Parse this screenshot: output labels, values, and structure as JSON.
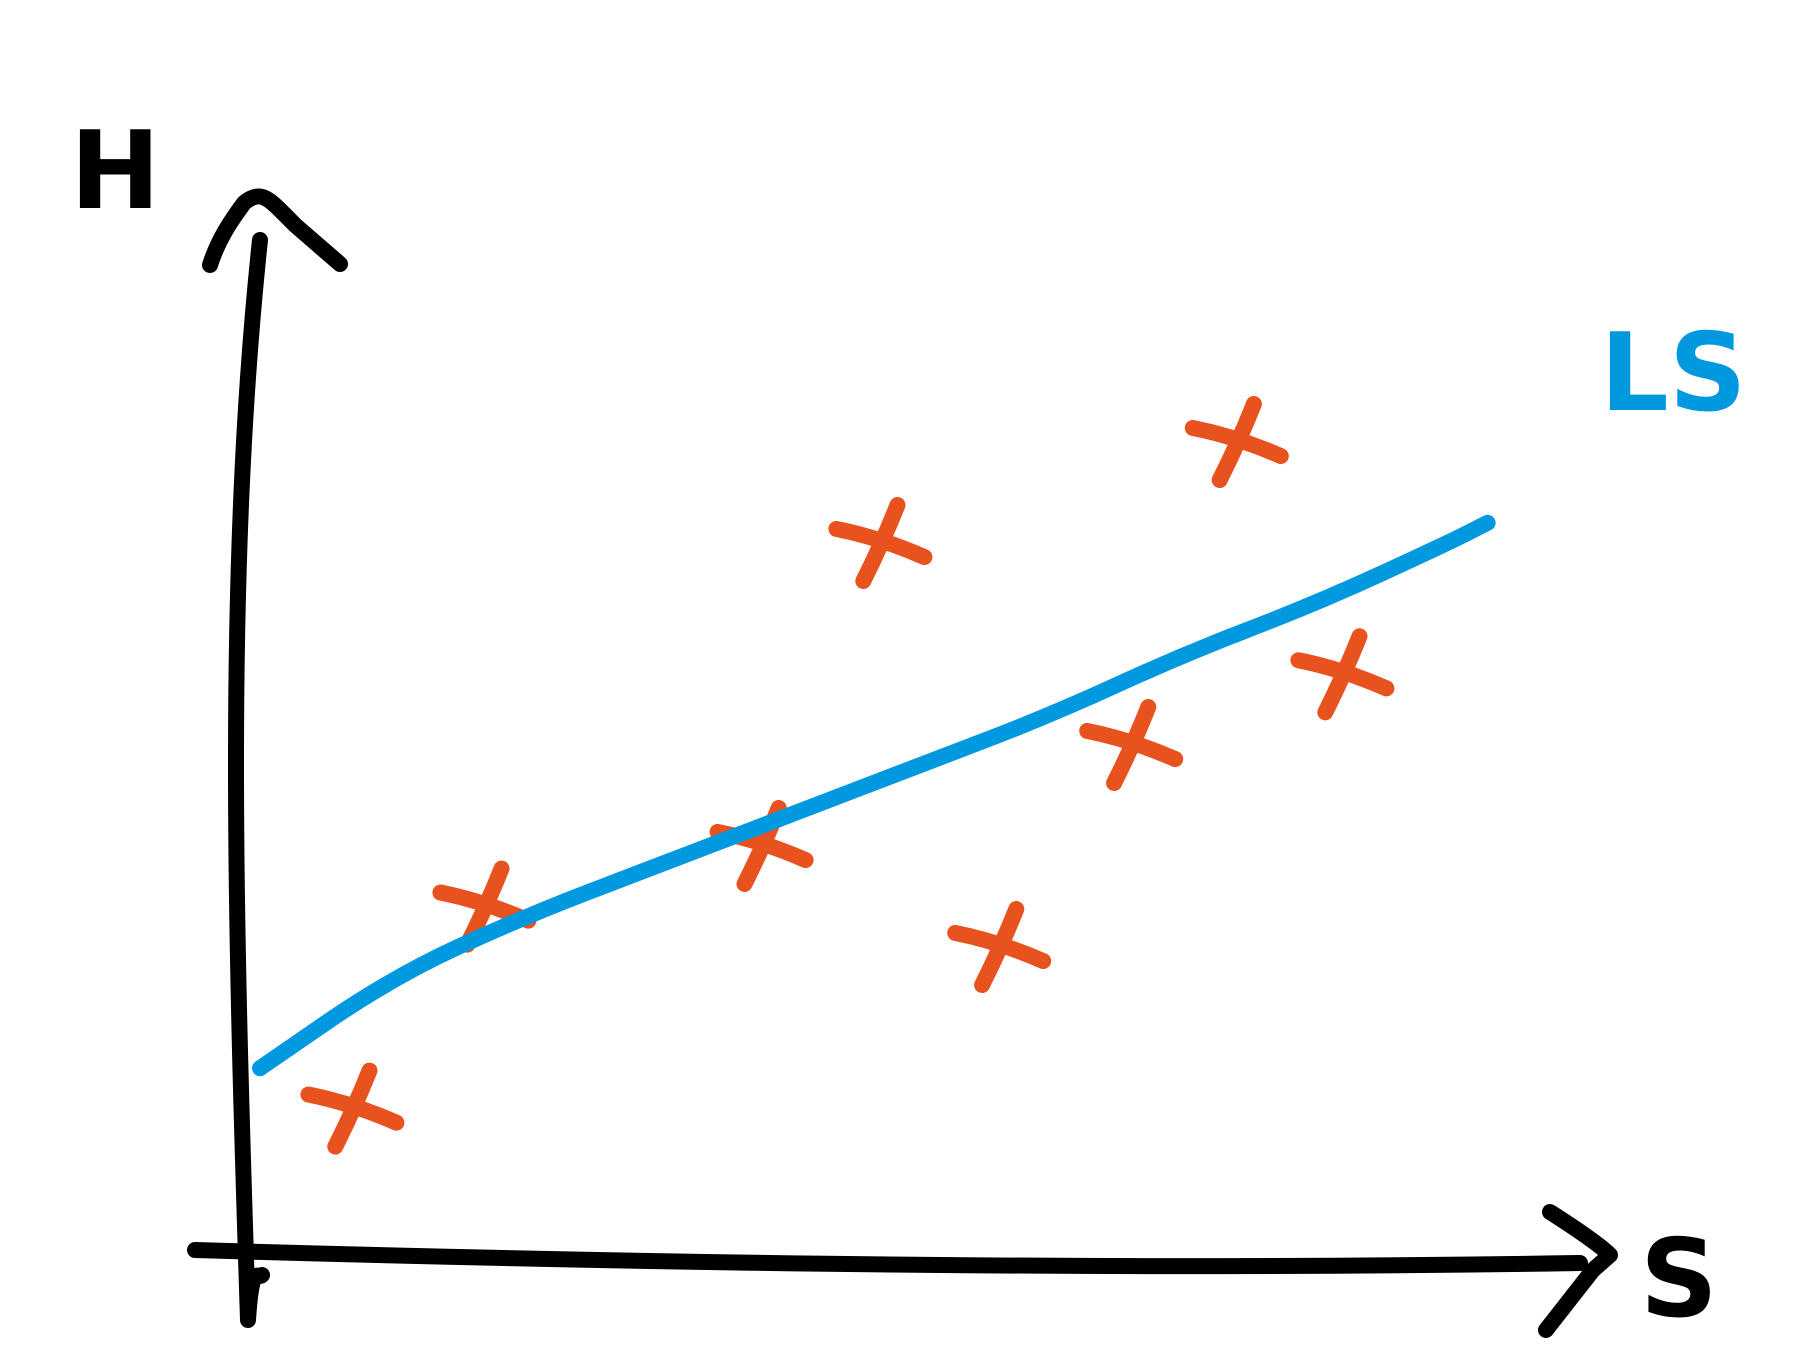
{
  "chart_data": {
    "type": "scatter",
    "title": "",
    "xlabel": "S",
    "ylabel": "H",
    "xlim": [
      0,
      10
    ],
    "ylim": [
      0,
      10
    ],
    "grid": false,
    "legend": "none",
    "points": [
      {
        "x": 0.7,
        "y": 1.4
      },
      {
        "x": 1.7,
        "y": 3.4
      },
      {
        "x": 3.8,
        "y": 4.0
      },
      {
        "x": 4.7,
        "y": 7.0
      },
      {
        "x": 5.6,
        "y": 3.0
      },
      {
        "x": 6.6,
        "y": 5.0
      },
      {
        "x": 7.4,
        "y": 8.0
      },
      {
        "x": 8.2,
        "y": 5.7
      }
    ],
    "fit_line": {
      "name": "LS",
      "x": [
        0.0,
        1.0,
        2.0,
        3.0,
        4.0,
        5.0,
        6.0,
        7.0,
        8.0,
        9.0,
        9.3
      ],
      "y": [
        1.8,
        2.7,
        3.3,
        3.8,
        4.3,
        4.8,
        5.3,
        5.9,
        6.4,
        7.0,
        7.2
      ]
    },
    "colors": {
      "axes": "#000000",
      "points": "#e8521e",
      "fit_line": "#0099e0"
    }
  }
}
